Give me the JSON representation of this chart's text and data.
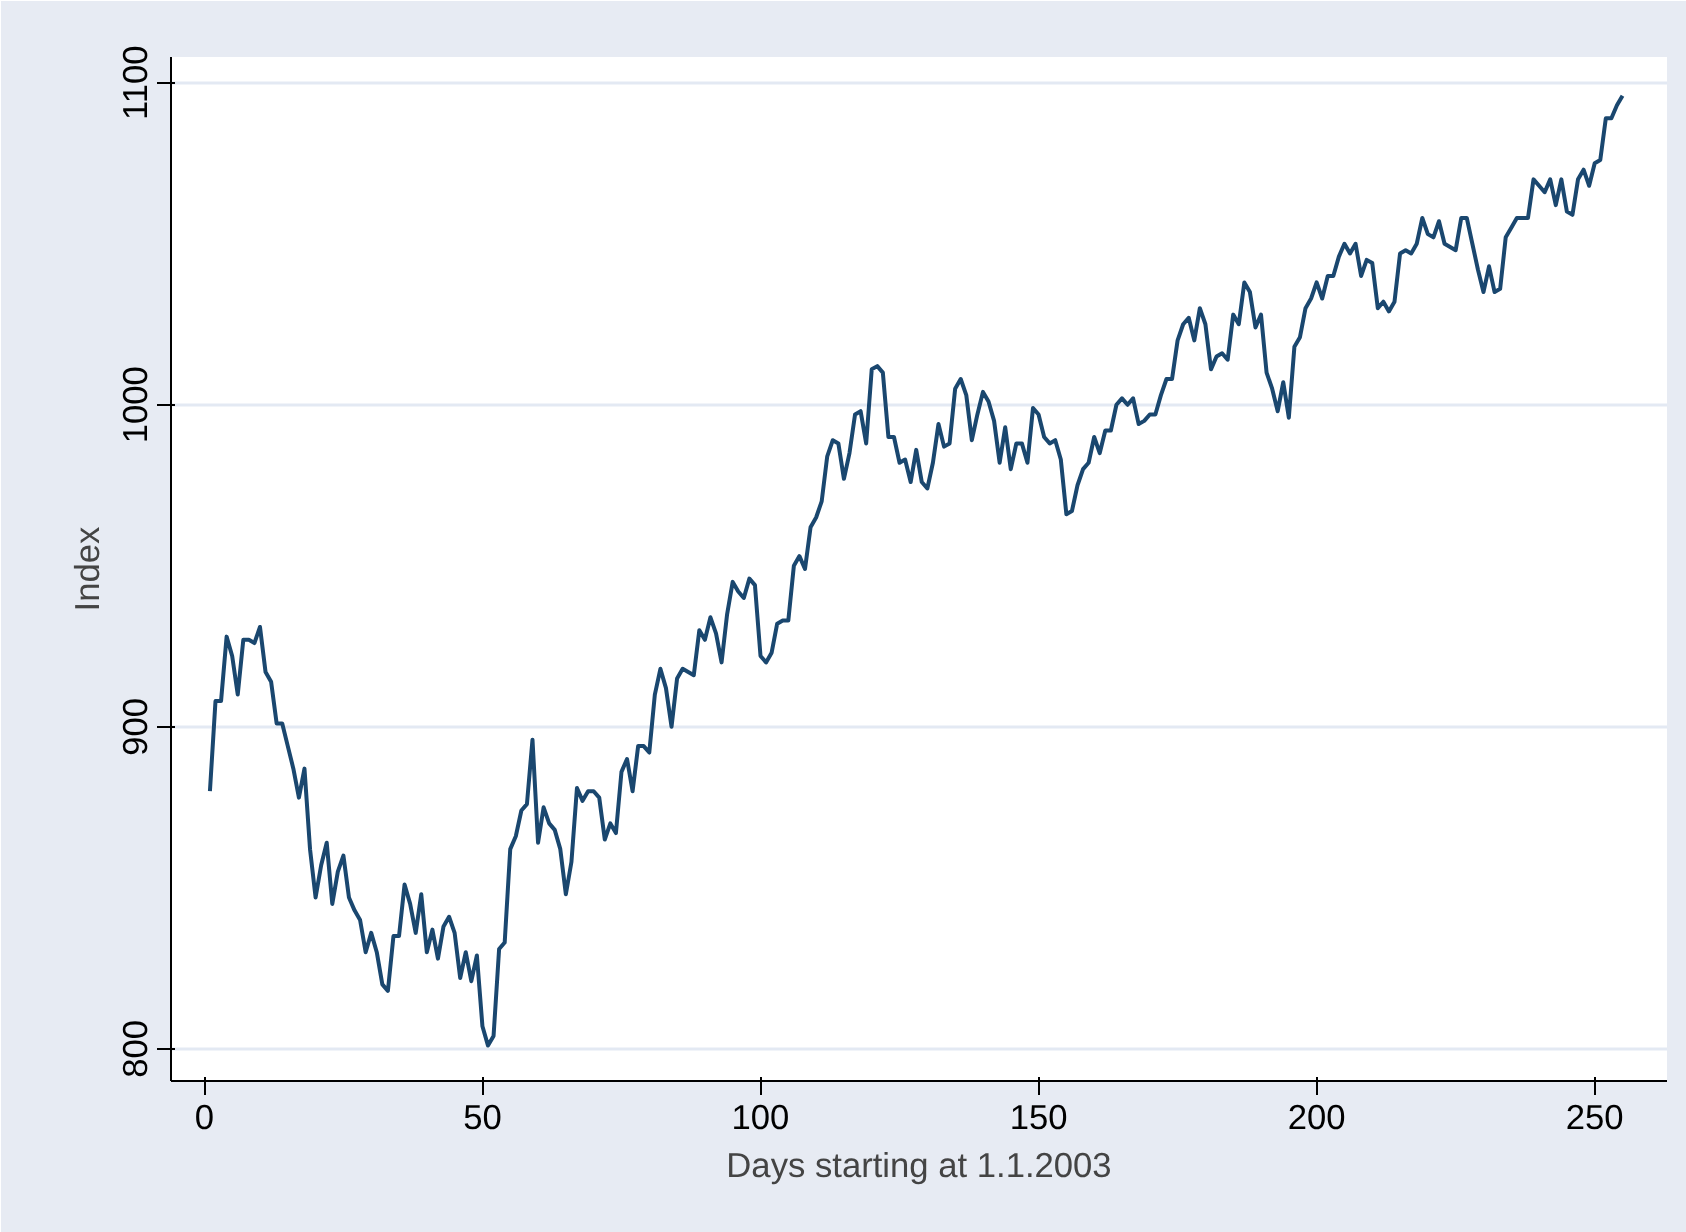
{
  "chart_data": {
    "type": "line",
    "xlabel": "Days starting at 1.1.2003",
    "ylabel": "Index",
    "x": [
      1,
      2,
      3,
      4,
      5,
      6,
      7,
      8,
      9,
      10,
      11,
      12,
      13,
      14,
      15,
      16,
      17,
      18,
      19,
      20,
      21,
      22,
      23,
      24,
      25,
      26,
      27,
      28,
      29,
      30,
      31,
      32,
      33,
      34,
      35,
      36,
      37,
      38,
      39,
      40,
      41,
      42,
      43,
      44,
      45,
      46,
      47,
      48,
      49,
      50,
      51,
      52,
      53,
      54,
      55,
      56,
      57,
      58,
      59,
      60,
      61,
      62,
      63,
      64,
      65,
      66,
      67,
      68,
      69,
      70,
      71,
      72,
      73,
      74,
      75,
      76,
      77,
      78,
      79,
      80,
      81,
      82,
      83,
      84,
      85,
      86,
      87,
      88,
      89,
      90,
      91,
      92,
      93,
      94,
      95,
      96,
      97,
      98,
      99,
      100,
      101,
      102,
      103,
      104,
      105,
      106,
      107,
      108,
      109,
      110,
      111,
      112,
      113,
      114,
      115,
      116,
      117,
      118,
      119,
      120,
      121,
      122,
      123,
      124,
      125,
      126,
      127,
      128,
      129,
      130,
      131,
      132,
      133,
      134,
      135,
      136,
      137,
      138,
      139,
      140,
      141,
      142,
      143,
      144,
      145,
      146,
      147,
      148,
      149,
      150,
      151,
      152,
      153,
      154,
      155,
      156,
      157,
      158,
      159,
      160,
      161,
      162,
      163,
      164,
      165,
      166,
      167,
      168,
      169,
      170,
      171,
      172,
      173,
      174,
      175,
      176,
      177,
      178,
      179,
      180,
      181,
      182,
      183,
      184,
      185,
      186,
      187,
      188,
      189,
      190,
      191,
      192,
      193,
      194,
      195,
      196,
      197,
      198,
      199,
      200,
      201,
      202,
      203,
      204,
      205,
      206,
      207,
      208,
      209,
      210,
      211,
      212,
      213,
      214,
      215,
      216,
      217,
      218,
      219,
      220,
      221,
      222,
      223,
      224,
      225,
      226,
      227,
      228,
      229,
      230,
      231,
      232,
      233,
      234,
      235,
      236,
      237,
      238,
      239,
      240,
      241,
      242,
      243,
      244,
      245,
      246,
      247,
      248,
      249,
      250,
      251,
      252,
      253,
      254,
      255
    ],
    "series": [
      {
        "color": "#1a476f",
        "values": [
          880,
          908,
          908,
          928,
          922,
          910,
          927,
          927,
          926,
          931,
          917,
          914,
          901,
          901,
          894,
          887,
          878,
          887,
          862,
          847,
          857,
          864,
          845,
          855,
          860,
          847,
          843,
          840,
          830,
          836,
          830,
          820,
          818,
          835,
          835,
          851,
          845,
          836,
          848,
          830,
          837,
          828,
          838,
          841,
          836,
          822,
          830,
          821,
          829,
          807,
          801,
          804,
          831,
          833,
          862,
          866,
          874,
          876,
          896,
          864,
          875,
          870,
          868,
          862,
          848,
          858,
          881,
          877,
          880,
          880,
          878,
          865,
          870,
          867,
          886,
          890,
          880,
          894,
          894,
          892,
          910,
          918,
          912,
          900,
          915,
          918,
          917,
          916,
          930,
          927,
          934,
          929,
          920,
          935,
          945,
          942,
          940,
          946,
          944,
          922,
          920,
          923,
          932,
          933,
          933,
          950,
          953,
          949,
          962,
          965,
          970,
          984,
          989,
          988,
          977,
          985,
          997,
          998,
          988,
          1011,
          1012,
          1010,
          990,
          990,
          982,
          983,
          976,
          986,
          976,
          974,
          982,
          994,
          987,
          988,
          1005,
          1008,
          1003,
          989,
          997,
          1004,
          1001,
          995,
          982,
          993,
          980,
          988,
          988,
          982,
          999,
          997,
          990,
          988,
          989,
          983,
          966,
          967,
          975,
          980,
          982,
          990,
          985,
          992,
          992,
          1000,
          1002,
          1000,
          1002,
          994,
          995,
          997,
          997,
          1003,
          1008,
          1008,
          1020,
          1025,
          1027,
          1020,
          1030,
          1025,
          1011,
          1015,
          1016,
          1014,
          1028,
          1025,
          1038,
          1035,
          1024,
          1028,
          1010,
          1005,
          998,
          1007,
          996,
          1018,
          1021,
          1030,
          1033,
          1038,
          1033,
          1040,
          1040,
          1046,
          1050,
          1047,
          1050,
          1040,
          1045,
          1044,
          1030,
          1032,
          1029,
          1032,
          1047,
          1048,
          1047,
          1050,
          1058,
          1053,
          1052,
          1057,
          1050,
          1049,
          1048,
          1058,
          1058,
          1050,
          1042,
          1035,
          1043,
          1035,
          1036,
          1052,
          1055,
          1058,
          1058,
          1058,
          1070,
          1068,
          1066,
          1070,
          1062,
          1070,
          1060,
          1059,
          1070,
          1073,
          1068,
          1075,
          1076,
          1089,
          1089,
          1093,
          1096
        ]
      }
    ],
    "xlim": [
      -6,
      263
    ],
    "ylim": [
      790,
      1108
    ],
    "xticks": [
      0,
      50,
      100,
      150,
      200,
      250
    ],
    "yticks": [
      800,
      900,
      1000,
      1100
    ],
    "grid": "y",
    "marker": "none",
    "line_style": "solid"
  }
}
